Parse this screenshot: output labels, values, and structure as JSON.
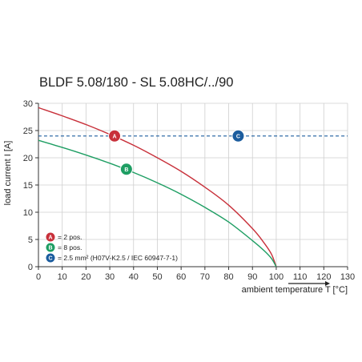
{
  "chart_data": {
    "type": "line",
    "title": "BLDF 5.08/180 - SL 5.08HC/../90",
    "xlabel": "ambient temperature T [°C]",
    "ylabel": "load current I [A]",
    "xlim": [
      0,
      130
    ],
    "ylim": [
      0,
      30
    ],
    "xticks": [
      0,
      10,
      20,
      30,
      40,
      50,
      60,
      70,
      80,
      90,
      100,
      110,
      120,
      130
    ],
    "yticks": [
      0,
      5,
      10,
      15,
      20,
      25,
      30
    ],
    "grid": true,
    "series": [
      {
        "marker": "A",
        "color": "#c8303a",
        "style": "solid",
        "x": [
          0,
          10,
          20,
          30,
          40,
          50,
          60,
          70,
          80,
          90,
          95,
          98,
          100
        ],
        "y": [
          29.2,
          27.7,
          26.1,
          24.3,
          22.3,
          20.0,
          17.5,
          14.6,
          11.3,
          7.0,
          4.3,
          2.3,
          0
        ]
      },
      {
        "marker": "B",
        "color": "#1e9e63",
        "style": "solid",
        "x": [
          0,
          10,
          20,
          30,
          40,
          50,
          60,
          70,
          80,
          90,
          95,
          98,
          100
        ],
        "y": [
          23.2,
          21.9,
          20.5,
          19.0,
          17.3,
          15.4,
          13.3,
          10.9,
          8.2,
          4.8,
          2.9,
          1.5,
          0
        ]
      },
      {
        "marker": "C",
        "color": "#1b5c9e",
        "style": "dashed",
        "x": [
          0,
          130
        ],
        "y": [
          24,
          24
        ]
      }
    ],
    "markers": [
      {
        "label": "A",
        "x": 32,
        "y": 24,
        "color": "#c8303a"
      },
      {
        "label": "B",
        "x": 37,
        "y": 17.9,
        "color": "#1e9e63"
      },
      {
        "label": "C",
        "x": 84,
        "y": 24,
        "color": "#1b5c9e"
      }
    ],
    "legend": {
      "placement": "bottom-left",
      "entries": [
        {
          "badge": "A",
          "text": "= 2 pos.",
          "color": "#c8303a"
        },
        {
          "badge": "B",
          "text": "= 8 pos.",
          "color": "#1e9e63"
        },
        {
          "badge": "C",
          "text": "= 2.5 mm² (H07V-K2.5 / IEC 60947-7-1)",
          "color": "#1b5c9e"
        }
      ]
    }
  }
}
